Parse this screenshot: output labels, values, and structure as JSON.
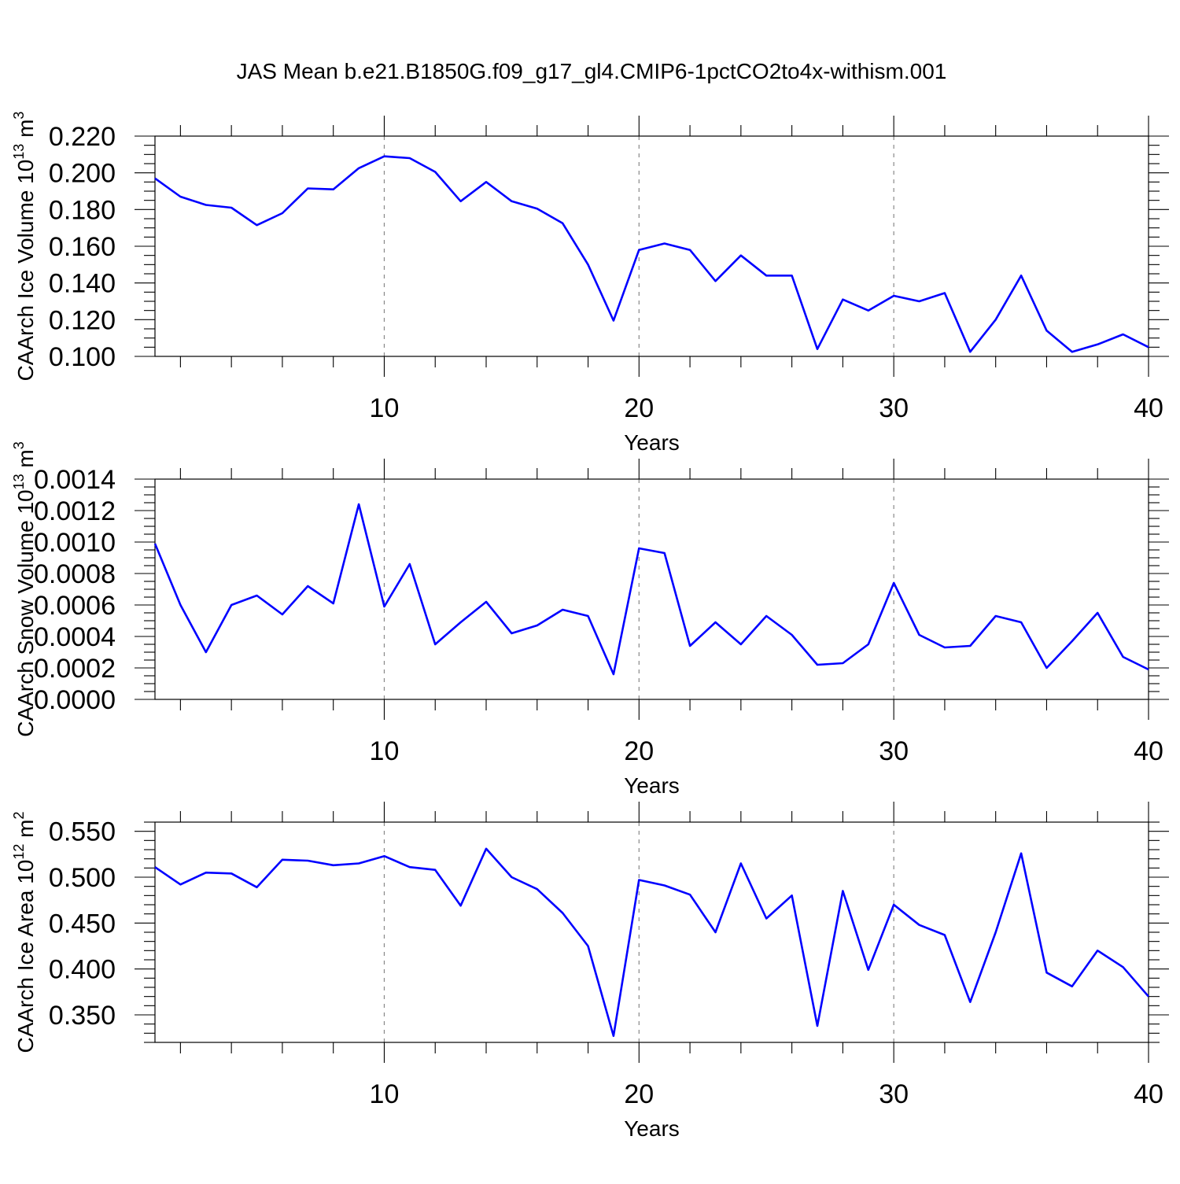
{
  "title": "JAS Mean b.e21.B1850G.f09_g17_gl4.CMIP6-1pctCO2to4x-withism.001",
  "colors": {
    "series": "#0000ff",
    "axes": "#000000",
    "grid": "#888888"
  },
  "chart_data": [
    {
      "type": "line",
      "ylabel": "CAArch Ice Volume 10",
      "ylabel_exp": "13",
      "ylabel_unit": " m",
      "ylabel_unit_exp": "3",
      "xlabel": "Years",
      "xlim": [
        1,
        40
      ],
      "ylim": [
        0.1,
        0.22
      ],
      "yticks": [
        "0.100",
        "0.120",
        "0.140",
        "0.160",
        "0.180",
        "0.200",
        "0.220"
      ],
      "xticks": [
        "10",
        "20",
        "30",
        "40"
      ],
      "ymajor": 0.02,
      "yminor": 0.005,
      "grid_x": [
        10,
        20,
        30
      ],
      "x": [
        1,
        2,
        3,
        4,
        5,
        6,
        7,
        8,
        9,
        10,
        11,
        12,
        13,
        14,
        15,
        16,
        17,
        18,
        19,
        20,
        21,
        22,
        23,
        24,
        25,
        26,
        27,
        28,
        29,
        30,
        31,
        32,
        33,
        34,
        35,
        36,
        37,
        38,
        39,
        40
      ],
      "values": [
        0.197,
        0.187,
        0.1825,
        0.181,
        0.1715,
        0.178,
        0.1915,
        0.191,
        0.2025,
        0.209,
        0.208,
        0.2005,
        0.1845,
        0.195,
        0.1845,
        0.1805,
        0.1725,
        0.15,
        0.1195,
        0.158,
        0.1615,
        0.158,
        0.141,
        0.155,
        0.144,
        0.144,
        0.104,
        0.131,
        0.125,
        0.133,
        0.13,
        0.1345,
        0.1025,
        0.12,
        0.144,
        0.114,
        0.1025,
        0.1065,
        0.112,
        0.105
      ]
    },
    {
      "type": "line",
      "ylabel": "CAArch Snow Volume 10",
      "ylabel_exp": "13",
      "ylabel_unit": " m",
      "ylabel_unit_exp": "3",
      "xlabel": "Years",
      "xlim": [
        1,
        40
      ],
      "ylim": [
        0,
        0.0014
      ],
      "yticks": [
        "0.0000",
        "0.0002",
        "0.0004",
        "0.0006",
        "0.0008",
        "0.0010",
        "0.0012",
        "0.0014"
      ],
      "xticks": [
        "10",
        "20",
        "30",
        "40"
      ],
      "ymajor": 0.0002,
      "yminor": 5e-05,
      "grid_x": [
        10,
        20,
        30
      ],
      "x": [
        1,
        2,
        3,
        4,
        5,
        6,
        7,
        8,
        9,
        10,
        11,
        12,
        13,
        14,
        15,
        16,
        17,
        18,
        19,
        20,
        21,
        22,
        23,
        24,
        25,
        26,
        27,
        28,
        29,
        30,
        31,
        32,
        33,
        34,
        35,
        36,
        37,
        38,
        39,
        40
      ],
      "values": [
        0.00099,
        0.0006,
        0.0003,
        0.0006,
        0.00066,
        0.00054,
        0.00072,
        0.00061,
        0.00124,
        0.00059,
        0.00086,
        0.00035,
        0.00049,
        0.00062,
        0.00042,
        0.00047,
        0.00057,
        0.00053,
        0.00016,
        0.00096,
        0.00093,
        0.00034,
        0.00049,
        0.00035,
        0.00053,
        0.00041,
        0.00022,
        0.00023,
        0.00035,
        0.00074,
        0.00041,
        0.00033,
        0.00034,
        0.00053,
        0.00049,
        0.0002,
        0.00037,
        0.00055,
        0.00027,
        0.00019
      ]
    },
    {
      "type": "line",
      "ylabel": "CAArch Ice Area 10",
      "ylabel_exp": "12",
      "ylabel_unit": " m",
      "ylabel_unit_exp": "2",
      "xlabel": "Years",
      "xlim": [
        1,
        40
      ],
      "ylim": [
        0.32,
        0.56
      ],
      "yticks": [
        "0.350",
        "0.400",
        "0.450",
        "0.500",
        "0.550"
      ],
      "xticks": [
        "10",
        "20",
        "30",
        "40"
      ],
      "ymajor": 0.05,
      "ymajor_start": 0.35,
      "yminor": 0.01,
      "grid_x": [
        10,
        20,
        30
      ],
      "x": [
        1,
        2,
        3,
        4,
        5,
        6,
        7,
        8,
        9,
        10,
        11,
        12,
        13,
        14,
        15,
        16,
        17,
        18,
        19,
        20,
        21,
        22,
        23,
        24,
        25,
        26,
        27,
        28,
        29,
        30,
        31,
        32,
        33,
        34,
        35,
        36,
        37,
        38,
        39,
        40
      ],
      "values": [
        0.511,
        0.492,
        0.505,
        0.504,
        0.489,
        0.519,
        0.518,
        0.513,
        0.515,
        0.523,
        0.511,
        0.508,
        0.469,
        0.531,
        0.5,
        0.487,
        0.461,
        0.425,
        0.327,
        0.497,
        0.491,
        0.481,
        0.44,
        0.515,
        0.455,
        0.48,
        0.338,
        0.485,
        0.399,
        0.47,
        0.448,
        0.437,
        0.364,
        0.44,
        0.526,
        0.396,
        0.381,
        0.42,
        0.402,
        0.37
      ]
    }
  ]
}
